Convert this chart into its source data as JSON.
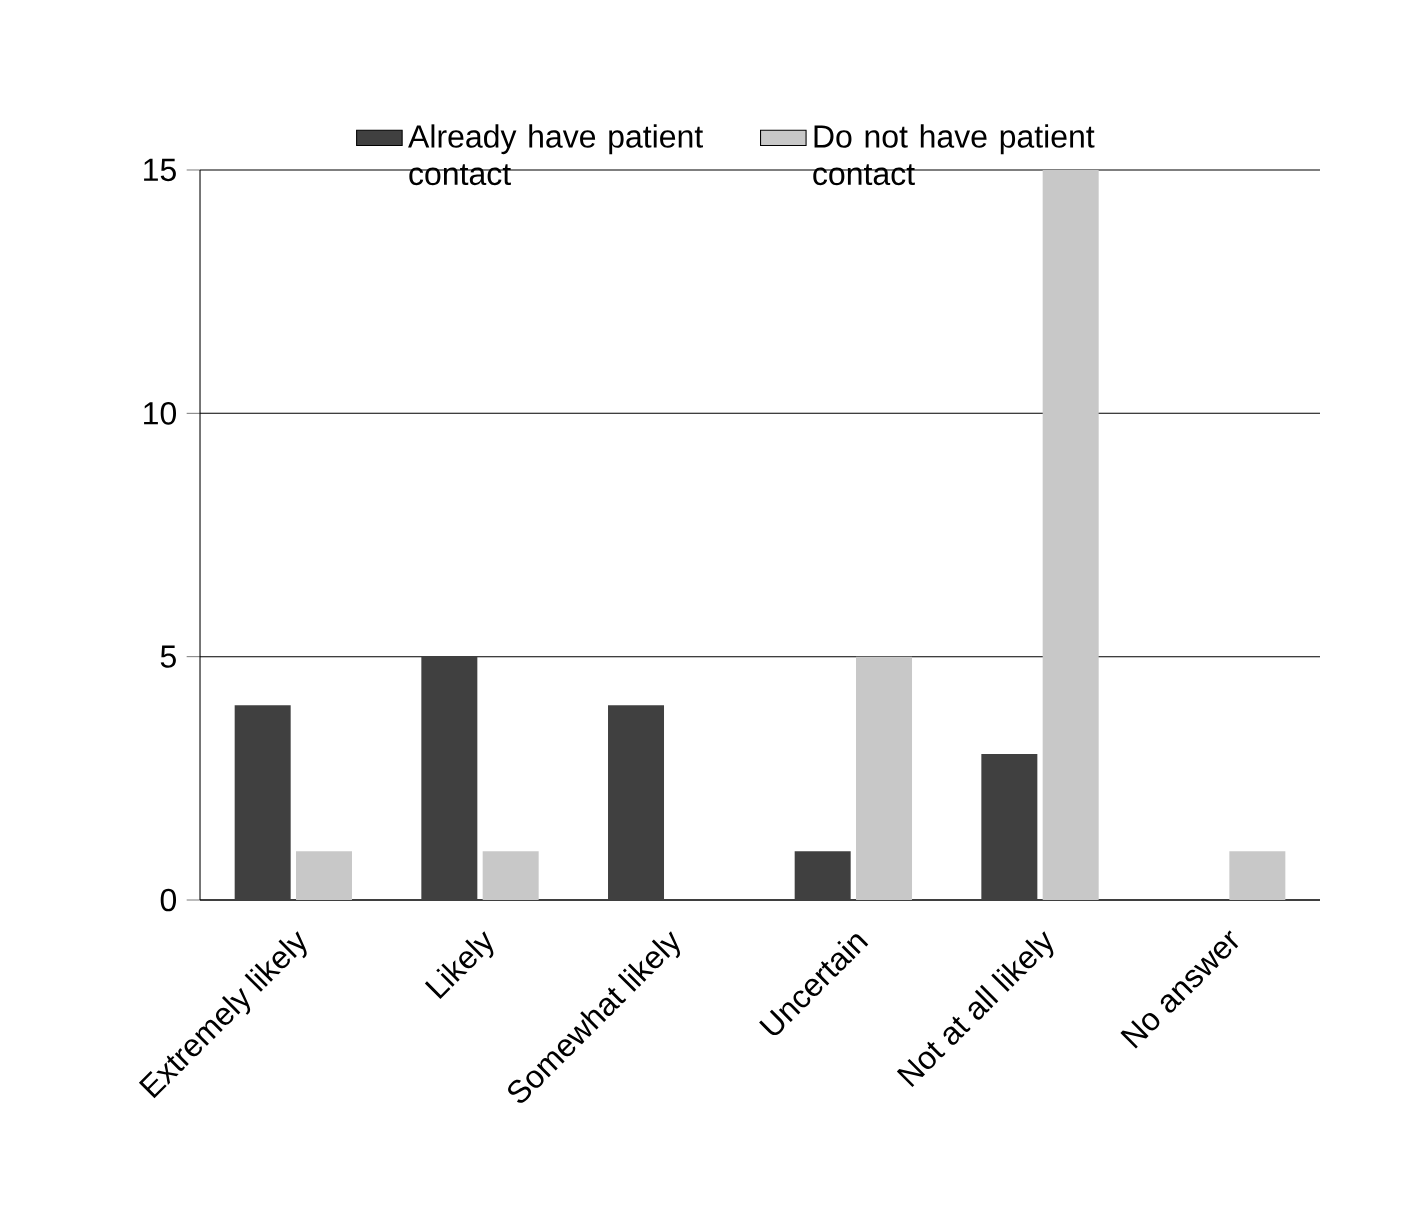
{
  "chart_data": {
    "type": "bar",
    "categories": [
      "Extremely likely",
      "Likely",
      "Somewhat likely",
      "Uncertain",
      "Not at all likely",
      "No answer"
    ],
    "series": [
      {
        "name": "Already have patient contact",
        "color": "#404040",
        "values": [
          4,
          5,
          4,
          1,
          3,
          0
        ]
      },
      {
        "name": "Do not have patient contact",
        "color": "#c8c8c8",
        "values": [
          1,
          1,
          0,
          5,
          15,
          1
        ]
      }
    ],
    "ylim": [
      0,
      15
    ],
    "yticks": [
      0,
      5,
      10,
      15
    ],
    "grid": "y",
    "legend": "top"
  }
}
